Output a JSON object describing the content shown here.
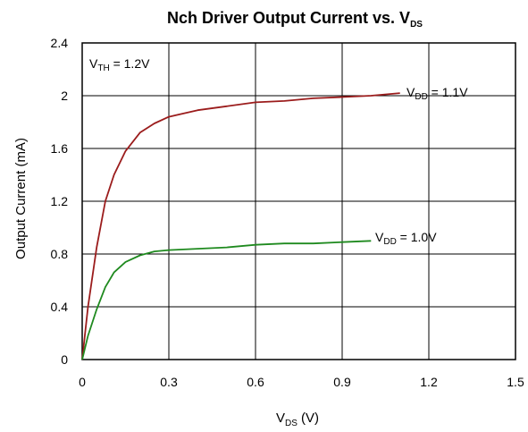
{
  "chart_data": {
    "type": "line",
    "title": "Nch Driver Output Current  vs. V",
    "title_sub": "DS",
    "xlabel": "V",
    "xlabel_sub": "DS",
    "xlabel_unit": " (V)",
    "ylabel": "Output Current (mA)",
    "xlim": [
      0,
      1.5
    ],
    "ylim": [
      0,
      2.4
    ],
    "x_ticks": [
      "0",
      "0.3",
      "0.6",
      "0.9",
      "1.2",
      "1.5"
    ],
    "y_ticks": [
      "0",
      "0.4",
      "0.8",
      "1.2",
      "1.6",
      "2",
      "2.4"
    ],
    "grid": true,
    "annotation": {
      "main": "V",
      "sub": "TH",
      "rest": " = 1.2V"
    },
    "series": [
      {
        "name": "1.1V",
        "label_main": "V",
        "label_sub": "DD",
        "label_rest": " = 1.1V",
        "color": "#9b1c1c",
        "x": [
          0,
          0.02,
          0.05,
          0.08,
          0.11,
          0.15,
          0.2,
          0.25,
          0.3,
          0.4,
          0.5,
          0.6,
          0.7,
          0.8,
          0.9,
          1.0,
          1.1
        ],
        "y": [
          0,
          0.4,
          0.85,
          1.2,
          1.4,
          1.58,
          1.72,
          1.79,
          1.84,
          1.89,
          1.92,
          1.95,
          1.96,
          1.98,
          1.99,
          2.0,
          2.02
        ]
      },
      {
        "name": "1.0V",
        "label_main": "V",
        "label_sub": "DD",
        "label_rest": " = 1.0V",
        "color": "#1f8a1f",
        "x": [
          0,
          0.02,
          0.05,
          0.08,
          0.11,
          0.15,
          0.2,
          0.25,
          0.3,
          0.4,
          0.5,
          0.6,
          0.7,
          0.8,
          0.9,
          1.0
        ],
        "y": [
          0,
          0.18,
          0.38,
          0.55,
          0.66,
          0.74,
          0.79,
          0.82,
          0.83,
          0.84,
          0.85,
          0.87,
          0.88,
          0.88,
          0.89,
          0.9
        ]
      }
    ]
  }
}
